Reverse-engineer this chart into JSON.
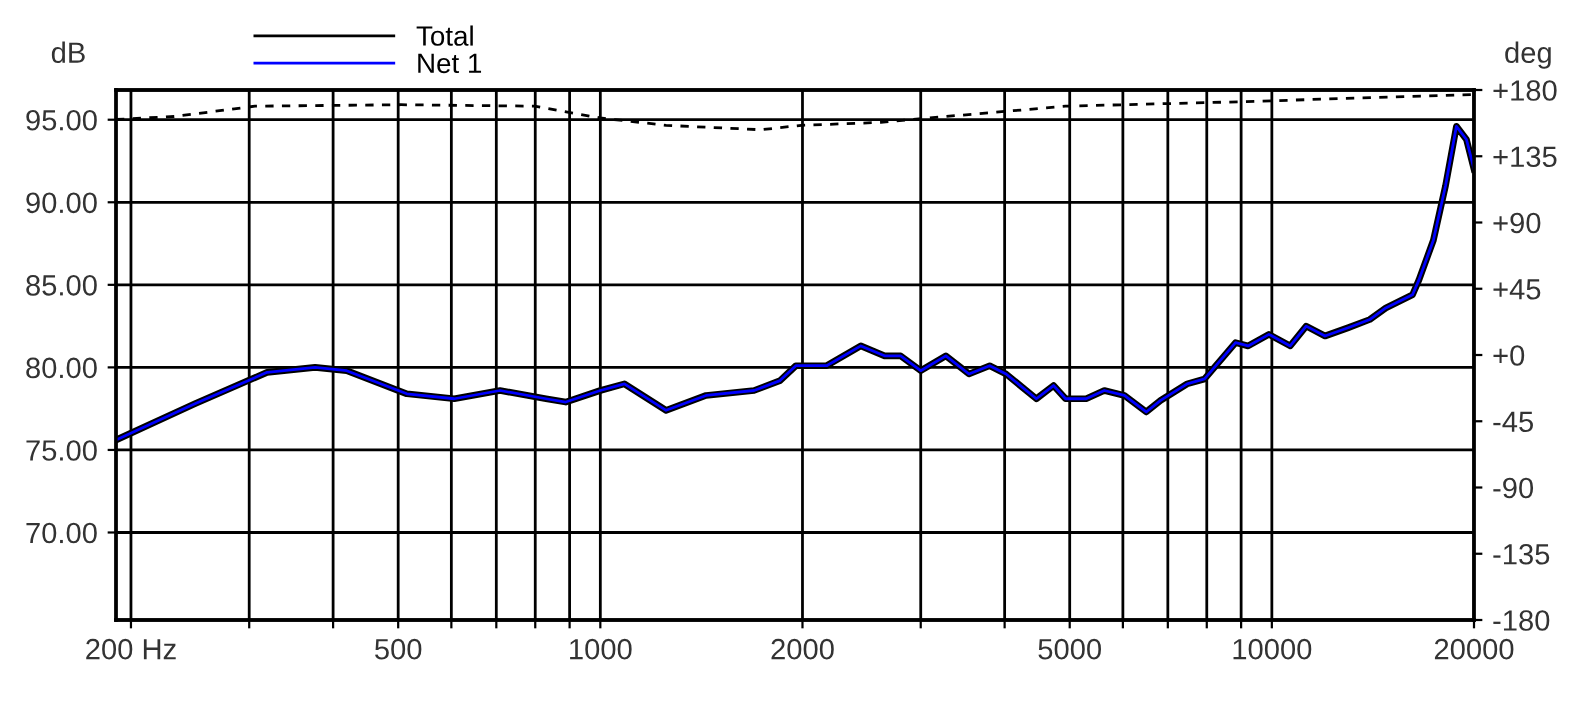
{
  "chart_data": {
    "type": "line",
    "ylabel": "dB",
    "y2label": "deg",
    "log": "x",
    "grid": true,
    "legend": "top left",
    "xlim": [
      190,
      20000
    ],
    "xticks": [
      {
        "value": 200,
        "label": "200 Hz"
      },
      {
        "value": 300,
        "label": null
      },
      {
        "value": 400,
        "label": null
      },
      500,
      {
        "value": 600,
        "label": null
      },
      {
        "value": 700,
        "label": null
      },
      {
        "value": 800,
        "label": null
      },
      {
        "value": 900,
        "label": null
      },
      1000,
      2000,
      {
        "value": 3000,
        "label": null
      },
      {
        "value": 4000,
        "label": null
      },
      5000,
      {
        "value": 6000,
        "label": null
      },
      {
        "value": 7000,
        "label": null
      },
      {
        "value": 8000,
        "label": null
      },
      {
        "value": 9000,
        "label": null
      },
      10000,
      20000
    ],
    "ylim": [
      64.7,
      96.8
    ],
    "yticks": [
      {
        "value": 70,
        "label": "70.00"
      },
      {
        "value": 75,
        "label": "75.00"
      },
      {
        "value": 80,
        "label": "80.00"
      },
      {
        "value": 85,
        "label": "85.00"
      },
      {
        "value": 90,
        "label": "90.00"
      },
      {
        "value": 95,
        "label": "95.00"
      }
    ],
    "y2lim": [
      -180,
      180
    ],
    "y2ticks": [
      {
        "value": -180,
        "label": "-180"
      },
      {
        "value": -135,
        "label": "-135"
      },
      {
        "value": -90,
        "label": "-90"
      },
      {
        "value": -45,
        "label": "-45"
      },
      {
        "value": 0,
        "label": "+0"
      },
      {
        "value": 45,
        "label": "+45"
      },
      {
        "value": 90,
        "label": "+90"
      },
      {
        "value": 135,
        "label": "+135"
      },
      {
        "value": 180,
        "label": "+180"
      }
    ],
    "series": [
      {
        "name": "Net 1",
        "color": "#0000ff",
        "line_style": "solid",
        "x": [
          190,
          249,
          319,
          376,
          419,
          515,
          606,
          709,
          830,
          888,
          1000,
          1086,
          1253,
          1437,
          1694,
          1852,
          1955,
          2173,
          2443,
          2650,
          2800,
          3000,
          3270,
          3540,
          3800,
          4020,
          4460,
          4730,
          4930,
          5290,
          5630,
          6030,
          6500,
          6830,
          7480,
          7940,
          8830,
          9220,
          9900,
          10650,
          11250,
          12000,
          12990,
          13990,
          14780,
          16200,
          16560,
          17400,
          18140,
          18830,
          19490,
          20000
        ],
        "values": [
          75.6,
          77.8,
          79.7,
          80.0,
          79.8,
          78.4,
          78.1,
          78.6,
          78.1,
          77.9,
          78.6,
          79.0,
          77.4,
          78.3,
          78.6,
          79.2,
          80.1,
          80.1,
          81.3,
          80.7,
          80.7,
          79.8,
          80.7,
          79.6,
          80.1,
          79.6,
          78.1,
          78.9,
          78.1,
          78.1,
          78.6,
          78.3,
          77.3,
          78.0,
          79.0,
          79.3,
          81.5,
          81.3,
          82.0,
          81.3,
          82.5,
          81.9,
          82.4,
          82.9,
          83.6,
          84.4,
          85.3,
          87.7,
          91.0,
          94.6,
          93.8,
          92.0
        ]
      },
      {
        "name": "Total",
        "color": "#000000",
        "line_style": "solid",
        "x": [
          190,
          249,
          319,
          376,
          419,
          515,
          606,
          709,
          830,
          888,
          1000,
          1086,
          1253,
          1437,
          1694,
          1852,
          1955,
          2173,
          2443,
          2650,
          2800,
          3000,
          3270,
          3540,
          3800,
          4020,
          4460,
          4730,
          4930,
          5290,
          5630,
          6030,
          6500,
          6830,
          7480,
          7940,
          8830,
          9220,
          9900,
          10650,
          11250,
          12000,
          12990,
          13990,
          14780,
          16200,
          16560,
          17400,
          18140,
          18830,
          19490,
          20000
        ],
        "values": [
          75.6,
          77.8,
          79.7,
          80.0,
          79.8,
          78.4,
          78.1,
          78.6,
          78.1,
          77.9,
          78.6,
          79.0,
          77.4,
          78.3,
          78.6,
          79.2,
          80.1,
          80.1,
          81.3,
          80.7,
          80.7,
          79.8,
          80.7,
          79.6,
          80.1,
          79.6,
          78.1,
          78.9,
          78.1,
          78.1,
          78.6,
          78.3,
          77.3,
          78.0,
          79.0,
          79.3,
          81.5,
          81.3,
          82.0,
          81.3,
          82.5,
          81.9,
          82.4,
          82.9,
          83.6,
          84.4,
          85.3,
          87.7,
          91.0,
          94.6,
          93.8,
          92.0
        ]
      },
      {
        "color": "#000000",
        "axis": "y2",
        "line_style": "dashed",
        "marker": "none",
        "x": [
          190,
          232,
          306,
          505,
          798,
          1000,
          1253,
          1732,
          1993,
          2616,
          3270,
          4930,
          8950,
          20000
        ],
        "values": [
          160,
          162,
          169,
          170,
          169,
          161,
          156,
          153,
          156,
          158,
          162,
          169,
          172,
          177
        ]
      }
    ]
  }
}
